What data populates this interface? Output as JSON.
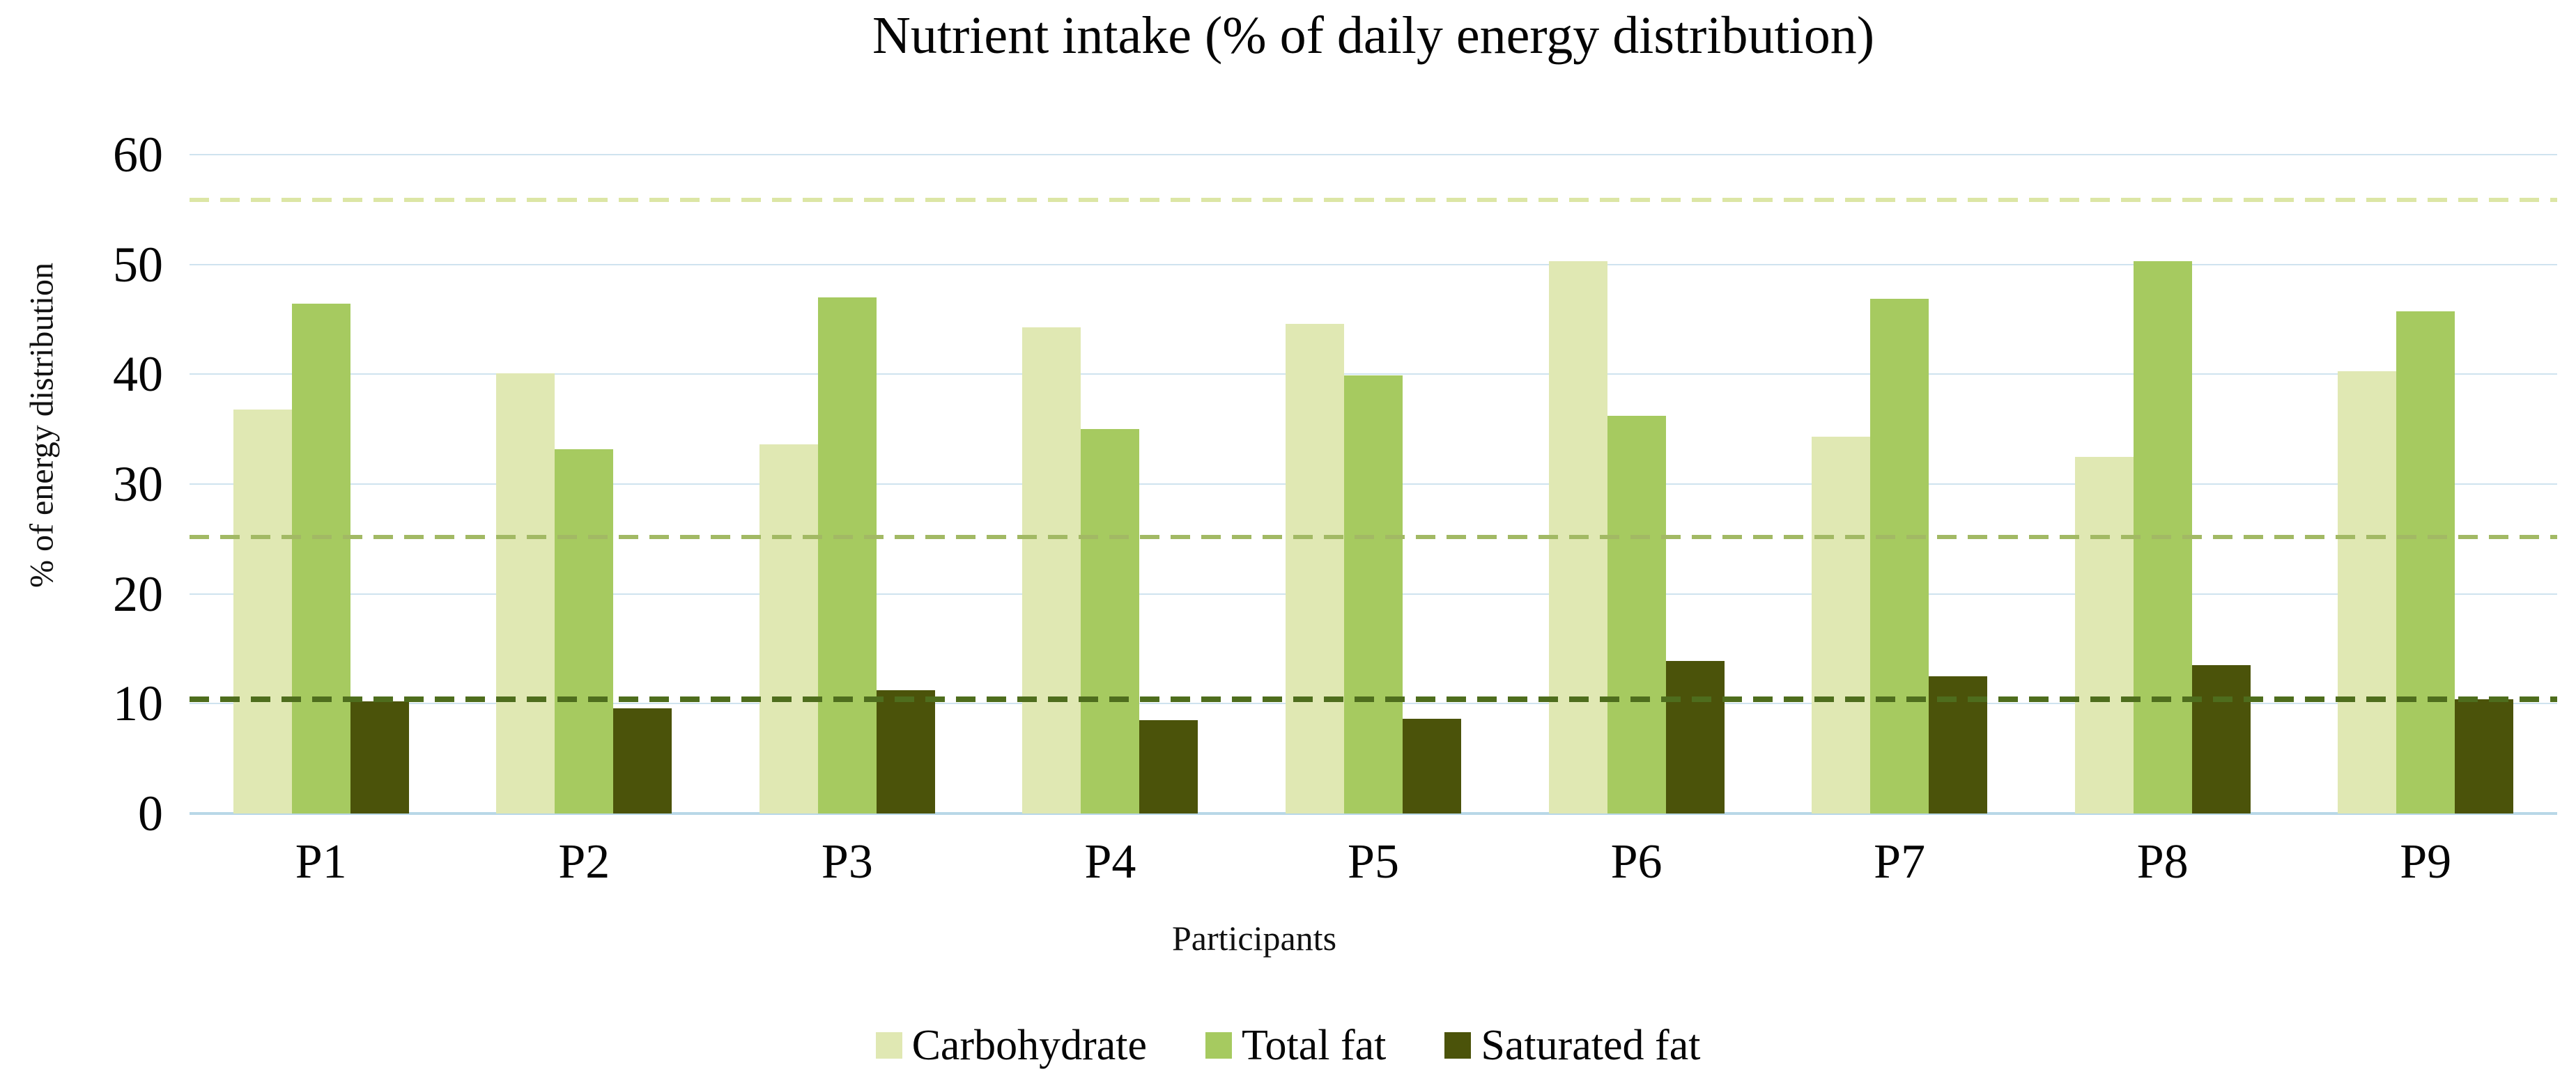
{
  "chart_data": {
    "type": "bar",
    "title": "Nutrient intake (% of daily energy distribution)",
    "xlabel": "Participants",
    "ylabel": "% of energy distribution",
    "ylim": [
      0,
      60
    ],
    "yticks": [
      0,
      10,
      20,
      30,
      40,
      50,
      60
    ],
    "grid": "horizontal",
    "gridline_color": "#cfe3ef",
    "legend_position": "bottom",
    "categories": [
      "P1",
      "P2",
      "P3",
      "P4",
      "P5",
      "P6",
      "P7",
      "P8",
      "P9"
    ],
    "series": [
      {
        "name": "Carbohydrate",
        "color": "#e0e8b3",
        "values": [
          36.8,
          40.1,
          33.6,
          44.3,
          44.6,
          50.3,
          34.3,
          32.5,
          40.3
        ]
      },
      {
        "name": "Total fat",
        "color": "#a6ca60",
        "values": [
          46.4,
          33.2,
          47.0,
          35.0,
          39.9,
          36.2,
          46.9,
          50.3,
          45.7
        ]
      },
      {
        "name": "Saturated fat",
        "color": "#4b530a",
        "values": [
          10.2,
          9.6,
          11.2,
          8.5,
          8.6,
          13.9,
          12.5,
          13.5,
          10.4
        ]
      }
    ],
    "reference_lines": [
      {
        "series": "Carbohydrate",
        "value": 55.9,
        "style": "dashed",
        "color": "#dce6a5"
      },
      {
        "series": "Total fat",
        "value": 25.2,
        "style": "dashed",
        "color": "#a2b964"
      },
      {
        "series": "Saturated fat",
        "value": 10.4,
        "style": "dashed",
        "color": "#4e6d1d"
      }
    ]
  }
}
